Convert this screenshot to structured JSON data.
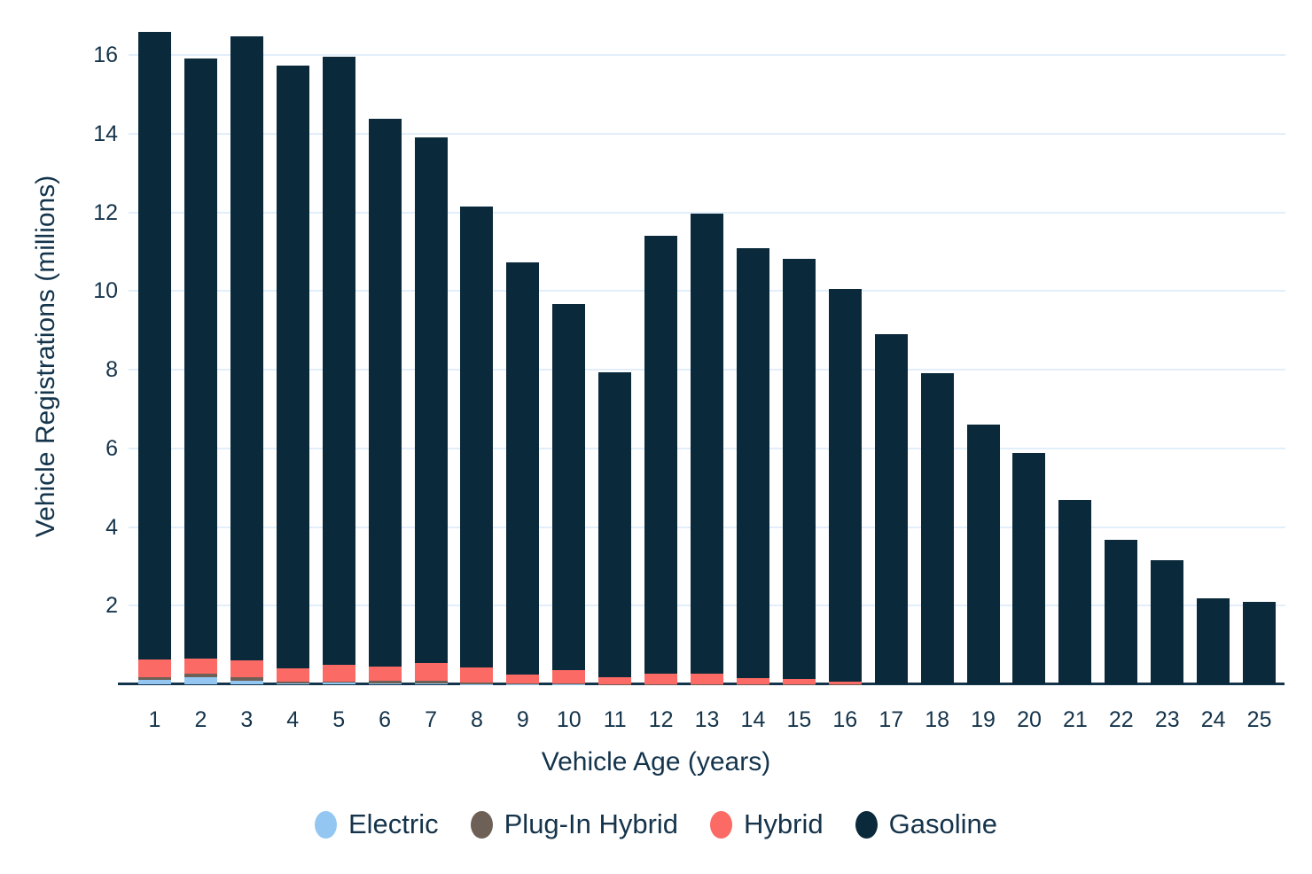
{
  "chart_data": {
    "type": "bar",
    "stacked": true,
    "title": "",
    "xlabel": "Vehicle Age (years)",
    "ylabel": "Vehicle Registrations (millions)",
    "categories": [
      1,
      2,
      3,
      4,
      5,
      6,
      7,
      8,
      9,
      10,
      11,
      12,
      13,
      14,
      15,
      16,
      17,
      18,
      19,
      20,
      21,
      22,
      23,
      24,
      25
    ],
    "ylim": [
      0,
      17.06
    ],
    "yticks": [
      2,
      4,
      6,
      8,
      10,
      12,
      14,
      16
    ],
    "grid": true,
    "legend_position": "bottom",
    "series": [
      {
        "name": "Electric",
        "color": "#93c7f1",
        "values": [
          0.12,
          0.18,
          0.08,
          0.03,
          0.04,
          0.02,
          0.02,
          0.01,
          0.01,
          0.01,
          0.0,
          0.0,
          0.0,
          0,
          0,
          0,
          0,
          0,
          0,
          0,
          0,
          0,
          0,
          0,
          0
        ]
      },
      {
        "name": "Plug-In Hybrid",
        "color": "#6d6057",
        "values": [
          0.07,
          0.08,
          0.1,
          0.04,
          0.03,
          0.06,
          0.06,
          0.04,
          0.02,
          0.02,
          0.01,
          0.01,
          0.01,
          0.01,
          0.01,
          0.01,
          0,
          0,
          0,
          0,
          0,
          0,
          0,
          0,
          0
        ]
      },
      {
        "name": "Hybrid",
        "color": "#fb6a64",
        "values": [
          0.45,
          0.4,
          0.42,
          0.34,
          0.42,
          0.37,
          0.47,
          0.37,
          0.21,
          0.32,
          0.17,
          0.26,
          0.26,
          0.15,
          0.12,
          0.05,
          0,
          0,
          0,
          0,
          0,
          0,
          0,
          0,
          0
        ]
      },
      {
        "name": "Gasoline",
        "color": "#0a2a3c",
        "values": [
          15.94,
          15.24,
          15.87,
          15.32,
          15.46,
          13.92,
          13.35,
          11.72,
          10.49,
          9.31,
          7.75,
          11.13,
          11.7,
          10.93,
          10.69,
          10.0,
          8.9,
          7.9,
          6.6,
          5.89,
          4.69,
          3.67,
          3.15,
          2.19,
          2.09
        ]
      }
    ]
  },
  "colors": {
    "background": "#ffffff",
    "gridline": "#e2eefa",
    "axis_line": "#14344c",
    "text": "#15344b"
  }
}
